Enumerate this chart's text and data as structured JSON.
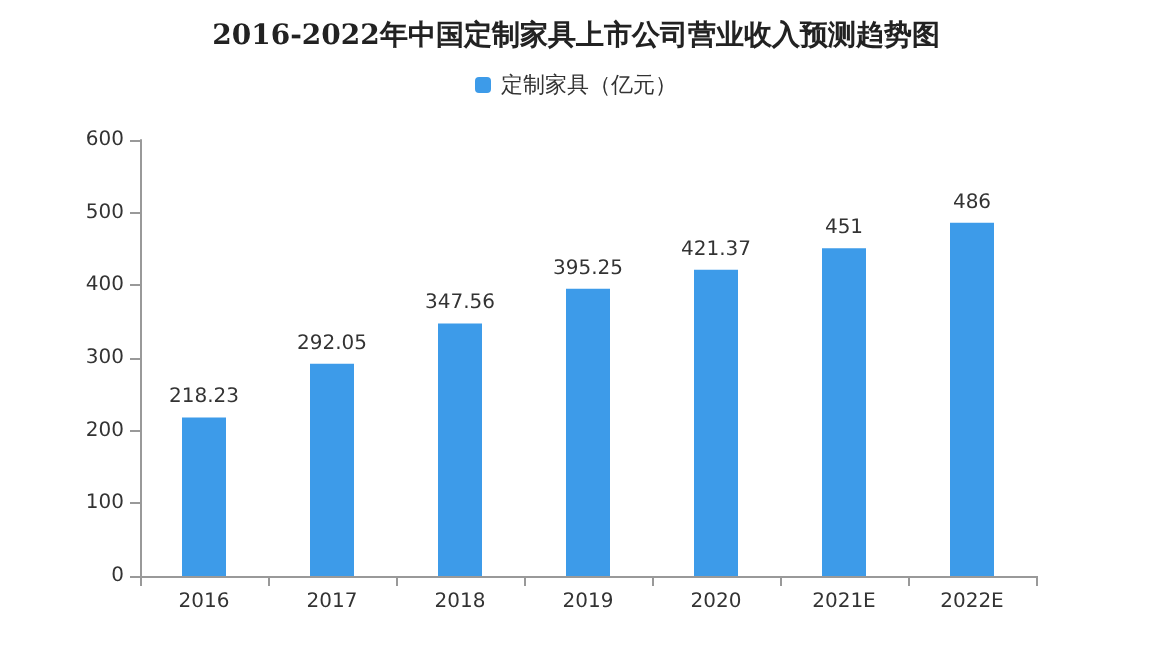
{
  "chart_data": {
    "type": "bar",
    "title": "2016-2022年中国定制家具上市公司营业收入预测趋势图",
    "categories": [
      "2016",
      "2017",
      "2018",
      "2019",
      "2020",
      "2021E",
      "2022E"
    ],
    "series": [
      {
        "name": "定制家具（亿元）",
        "color": "#3d9be9",
        "values": [
          218.23,
          292.05,
          347.56,
          395.25,
          421.37,
          451,
          486
        ]
      }
    ],
    "ylim": [
      0,
      600
    ],
    "yticks": [
      0,
      100,
      200,
      300,
      400,
      500,
      600
    ],
    "grid": false,
    "legend": "top",
    "data_labels": true
  }
}
